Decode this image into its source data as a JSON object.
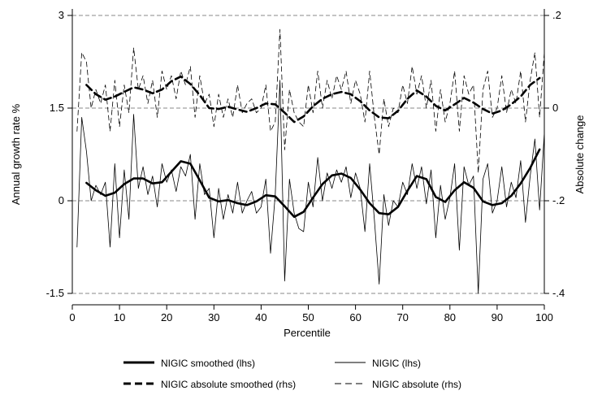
{
  "chart_data": {
    "type": "line",
    "xlabel": "Percentile",
    "ylabel_left": "Annual growth rate %",
    "ylabel_right": "Absolute change",
    "xlim": [
      0,
      100
    ],
    "ylim_left": [
      -1.5,
      3
    ],
    "ylim_right": [
      -0.4,
      0.2
    ],
    "x_ticks": [
      0,
      10,
      20,
      30,
      40,
      50,
      60,
      70,
      80,
      90,
      100
    ],
    "x_tick_labels": [
      "0",
      "10",
      "20",
      "30",
      "40",
      "50",
      "60",
      "70",
      "80",
      "90",
      "100"
    ],
    "y_left_ticks": [
      -1.5,
      0,
      1.5,
      3
    ],
    "y_left_tick_labels": [
      "-1.5",
      "0",
      "1.5",
      "3"
    ],
    "y_right_ticks": [
      -0.4,
      -0.2,
      0,
      0.2
    ],
    "y_right_tick_labels": [
      "-.4",
      "-.2",
      "0",
      ".2"
    ],
    "grid": true,
    "legend_position": "bottom",
    "series": [
      {
        "name": "NIGIC smoothed (lhs)",
        "axis": "left",
        "style": "thick-solid",
        "x": [
          3,
          5,
          7,
          9,
          11,
          13,
          15,
          17,
          19,
          21,
          23,
          25,
          27,
          29,
          31,
          33,
          35,
          37,
          39,
          41,
          43,
          45,
          47,
          49,
          51,
          53,
          55,
          57,
          59,
          61,
          63,
          65,
          67,
          69,
          71,
          73,
          75,
          77,
          79,
          81,
          83,
          85,
          87,
          89,
          91,
          93,
          95,
          97,
          99
        ],
        "y": [
          0.29,
          0.17,
          0.08,
          0.13,
          0.27,
          0.36,
          0.36,
          0.28,
          0.3,
          0.47,
          0.64,
          0.6,
          0.33,
          0.05,
          -0.01,
          0.01,
          -0.04,
          -0.07,
          -0.01,
          0.09,
          0.07,
          -0.09,
          -0.26,
          -0.18,
          0.05,
          0.27,
          0.41,
          0.44,
          0.37,
          0.18,
          -0.04,
          -0.2,
          -0.22,
          -0.1,
          0.16,
          0.4,
          0.35,
          0.06,
          -0.02,
          0.17,
          0.3,
          0.21,
          -0.01,
          -0.07,
          -0.04,
          0.08,
          0.28,
          0.53,
          0.83
        ]
      },
      {
        "name": "NIGIC (lhs)",
        "axis": "left",
        "style": "thin-solid",
        "x": [
          1,
          2,
          3,
          4,
          5,
          6,
          7,
          8,
          9,
          10,
          11,
          12,
          13,
          14,
          15,
          16,
          17,
          18,
          19,
          20,
          21,
          22,
          23,
          24,
          25,
          26,
          27,
          28,
          29,
          30,
          31,
          32,
          33,
          34,
          35,
          36,
          37,
          38,
          39,
          40,
          41,
          42,
          43,
          44,
          45,
          46,
          47,
          48,
          49,
          50,
          51,
          52,
          53,
          54,
          55,
          56,
          57,
          58,
          59,
          60,
          61,
          62,
          63,
          64,
          65,
          66,
          67,
          68,
          69,
          70,
          71,
          72,
          73,
          74,
          75,
          76,
          77,
          78,
          79,
          80,
          81,
          82,
          83,
          84,
          85,
          86,
          87,
          88,
          89,
          90,
          91,
          92,
          93,
          94,
          95,
          96,
          97,
          98,
          99,
          100
        ],
        "y": [
          -0.75,
          1.35,
          0.8,
          0.0,
          0.25,
          0.1,
          0.3,
          -0.75,
          0.6,
          -0.6,
          0.5,
          -0.3,
          1.4,
          0.2,
          0.55,
          0.1,
          0.4,
          -0.1,
          0.6,
          0.3,
          0.5,
          0.15,
          0.55,
          0.4,
          0.75,
          -0.3,
          0.6,
          0.1,
          0.2,
          -0.6,
          0.2,
          -0.3,
          0.1,
          -0.2,
          0.3,
          -0.2,
          0.0,
          0.15,
          -0.2,
          -0.1,
          0.35,
          -0.85,
          0.1,
          1.95,
          -1.3,
          0.35,
          -0.2,
          -0.45,
          -0.5,
          0.3,
          -0.1,
          0.7,
          0.0,
          0.45,
          0.2,
          0.5,
          0.3,
          0.55,
          0.05,
          0.45,
          0.2,
          -0.5,
          0.6,
          -0.3,
          -1.35,
          0.1,
          -0.4,
          0.0,
          -0.1,
          0.3,
          0.1,
          0.6,
          0.2,
          0.55,
          -0.05,
          0.5,
          -0.6,
          0.25,
          -0.3,
          0.05,
          0.6,
          -0.8,
          0.55,
          0.25,
          0.4,
          -1.5,
          0.35,
          0.6,
          -0.2,
          0.0,
          0.55,
          -0.1,
          0.3,
          0.05,
          0.65,
          -0.35,
          0.4,
          1.0,
          -0.15,
          1.1
        ]
      },
      {
        "name": "NIGIC absolute smoothed (rhs)",
        "axis": "right",
        "style": "thick-dashed",
        "x": [
          3,
          5,
          7,
          9,
          11,
          13,
          15,
          17,
          19,
          21,
          23,
          25,
          27,
          29,
          31,
          33,
          35,
          37,
          39,
          41,
          43,
          45,
          47,
          49,
          51,
          53,
          55,
          57,
          59,
          61,
          63,
          65,
          67,
          69,
          71,
          73,
          75,
          77,
          79,
          81,
          83,
          85,
          87,
          89,
          91,
          93,
          95,
          97,
          99
        ],
        "y": [
          0.05,
          0.03,
          0.018,
          0.025,
          0.035,
          0.045,
          0.04,
          0.032,
          0.04,
          0.058,
          0.068,
          0.052,
          0.028,
          0.0,
          -0.002,
          0.003,
          -0.003,
          -0.008,
          0.0,
          0.01,
          0.008,
          -0.01,
          -0.03,
          -0.018,
          0.004,
          0.02,
          0.03,
          0.035,
          0.03,
          0.015,
          -0.005,
          -0.02,
          -0.022,
          -0.006,
          0.02,
          0.038,
          0.025,
          0.005,
          -0.005,
          0.008,
          0.022,
          0.012,
          -0.002,
          -0.012,
          -0.005,
          0.008,
          0.025,
          0.05,
          0.065
        ]
      },
      {
        "name": "NIGIC absolute (rhs)",
        "axis": "right",
        "style": "thin-dashed",
        "x": [
          1,
          2,
          3,
          4,
          5,
          6,
          7,
          8,
          9,
          10,
          11,
          12,
          13,
          14,
          15,
          16,
          17,
          18,
          19,
          20,
          21,
          22,
          23,
          24,
          25,
          26,
          27,
          28,
          29,
          30,
          31,
          32,
          33,
          34,
          35,
          36,
          37,
          38,
          39,
          40,
          41,
          42,
          43,
          44,
          45,
          46,
          47,
          48,
          49,
          50,
          51,
          52,
          53,
          54,
          55,
          56,
          57,
          58,
          59,
          60,
          61,
          62,
          63,
          64,
          65,
          66,
          67,
          68,
          69,
          70,
          71,
          72,
          73,
          74,
          75,
          76,
          77,
          78,
          79,
          80,
          81,
          82,
          83,
          84,
          85,
          86,
          87,
          88,
          89,
          90,
          91,
          92,
          93,
          94,
          95,
          96,
          97,
          98,
          99,
          100
        ],
        "y": [
          -0.05,
          0.12,
          0.1,
          0.0,
          0.04,
          0.01,
          0.05,
          -0.05,
          0.06,
          -0.04,
          0.05,
          -0.01,
          0.13,
          0.04,
          0.07,
          0.01,
          0.06,
          -0.02,
          0.08,
          0.04,
          0.07,
          0.02,
          0.08,
          0.05,
          0.09,
          -0.02,
          0.07,
          0.01,
          0.03,
          -0.04,
          0.03,
          -0.02,
          0.02,
          -0.02,
          0.05,
          -0.01,
          0.01,
          0.02,
          -0.01,
          0.0,
          0.05,
          -0.05,
          -0.03,
          0.17,
          -0.09,
          0.04,
          -0.01,
          -0.03,
          -0.04,
          0.05,
          -0.01,
          0.08,
          0.0,
          0.06,
          0.02,
          0.07,
          0.04,
          0.08,
          0.01,
          0.06,
          0.03,
          -0.03,
          0.08,
          -0.02,
          -0.1,
          0.02,
          -0.04,
          0.0,
          -0.01,
          0.05,
          0.01,
          0.09,
          0.03,
          0.07,
          0.0,
          0.06,
          -0.05,
          0.04,
          -0.03,
          0.01,
          0.08,
          -0.05,
          0.07,
          0.03,
          0.05,
          -0.14,
          0.04,
          0.08,
          -0.02,
          0.0,
          0.07,
          -0.01,
          0.04,
          0.01,
          0.08,
          -0.03,
          0.06,
          0.12,
          -0.02,
          0.12
        ]
      }
    ]
  }
}
